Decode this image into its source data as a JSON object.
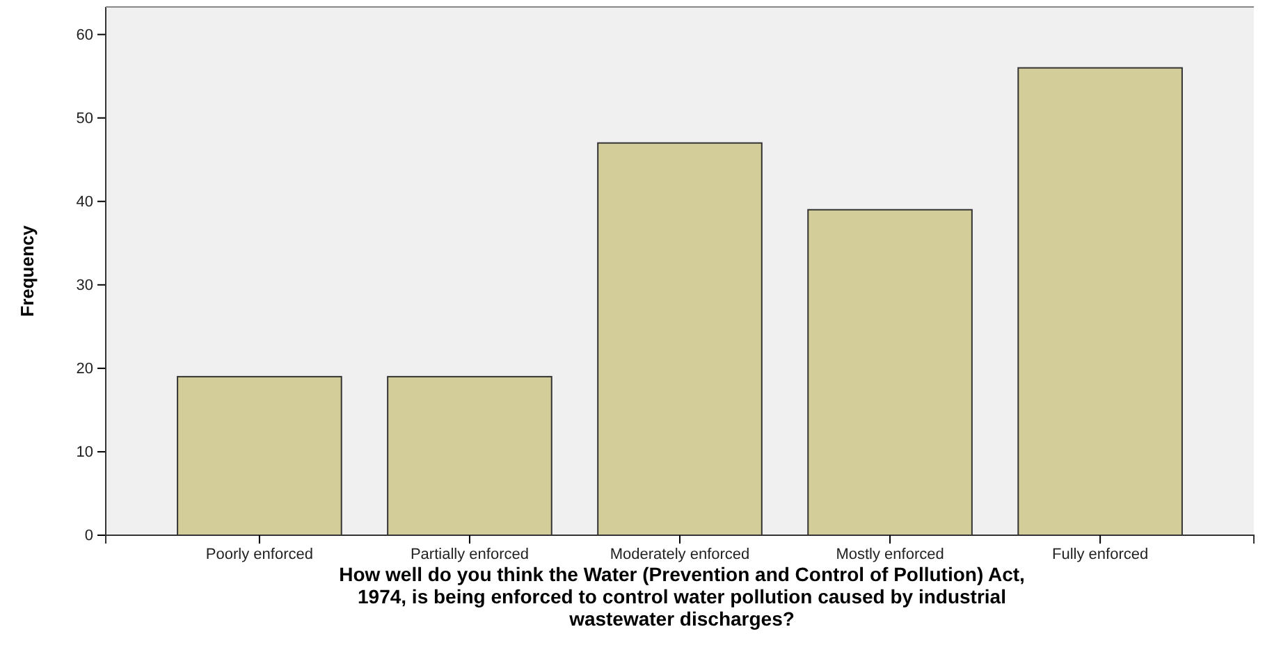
{
  "chart_data": {
    "type": "bar",
    "categories": [
      "Poorly enforced",
      "Partially enforced",
      "Moderately enforced",
      "Mostly enforced",
      "Fully enforced"
    ],
    "values": [
      19,
      19,
      47,
      39,
      56
    ],
    "color": "#d3ce99",
    "ylim": [
      0,
      63.3
    ],
    "yticks": [
      0,
      10,
      20,
      30,
      40,
      50,
      60
    ],
    "ylabel": "Frequency",
    "xlabel": "How well do you think the Water (Prevention and Control of Pollution) Act, 1974, is being enforced to control water pollution caused by industrial wastewater discharges?",
    "grid": false
  }
}
